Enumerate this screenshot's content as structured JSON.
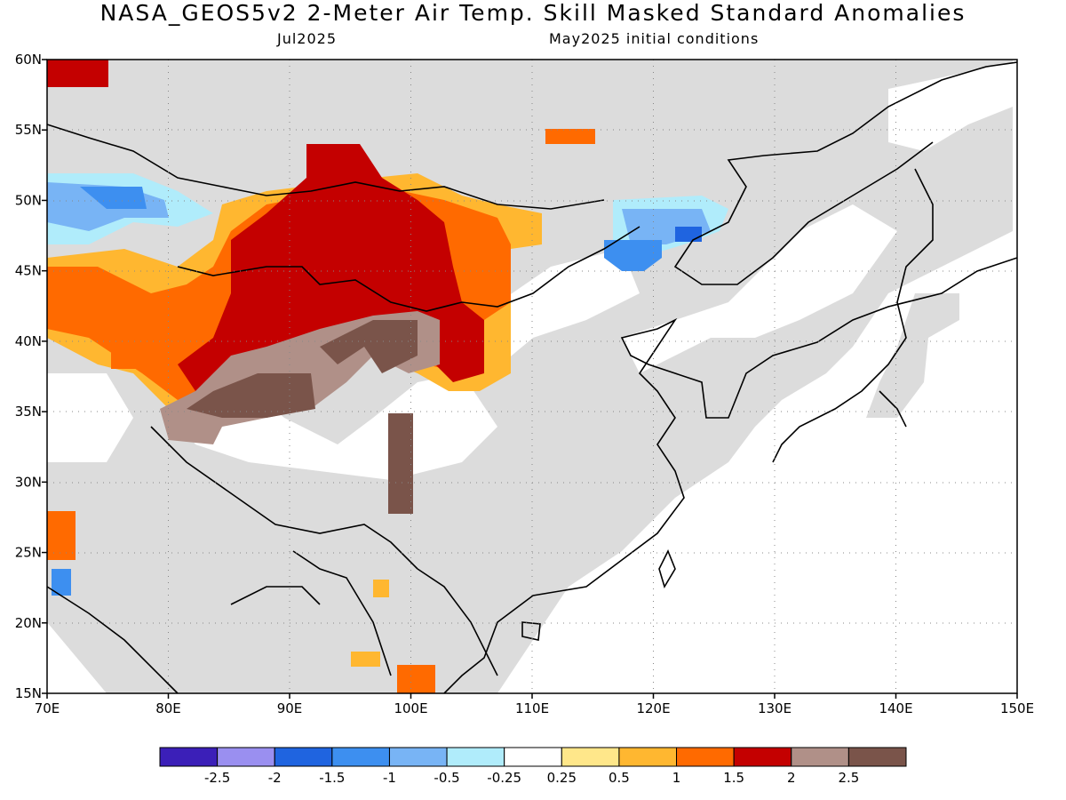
{
  "title": "NASA_GEOS5v2 2-Meter Air Temp. Skill Masked Standard Anomalies",
  "subtitle_left": "Jul2025",
  "subtitle_right": "May2025 initial conditions",
  "map": {
    "lon_range": [
      70,
      150
    ],
    "lat_range": [
      15,
      60
    ],
    "lon_ticks": [
      "70E",
      "80E",
      "90E",
      "100E",
      "110E",
      "120E",
      "130E",
      "140E",
      "150E"
    ],
    "lat_ticks": [
      "60N",
      "55N",
      "50N",
      "45N",
      "40N",
      "35N",
      "30N",
      "25N",
      "20N",
      "15N"
    ],
    "mask_color": "#dcdcdc",
    "coastline_color": "#000000"
  },
  "legend": {
    "colors": [
      "#3b1fb8",
      "#9a8ff0",
      "#1f64e0",
      "#3d8ff0",
      "#78b4f5",
      "#b0ecfb",
      "#ffffff",
      "#ffe78a",
      "#ffb730",
      "#ff6a00",
      "#c40000",
      "#b09088",
      "#7a544a"
    ],
    "labels": [
      "-2.5",
      "-2",
      "-1.5",
      "-1",
      "-0.5",
      "-0.25",
      "0.25",
      "0.5",
      "1",
      "1.5",
      "2",
      "2.5"
    ]
  }
}
